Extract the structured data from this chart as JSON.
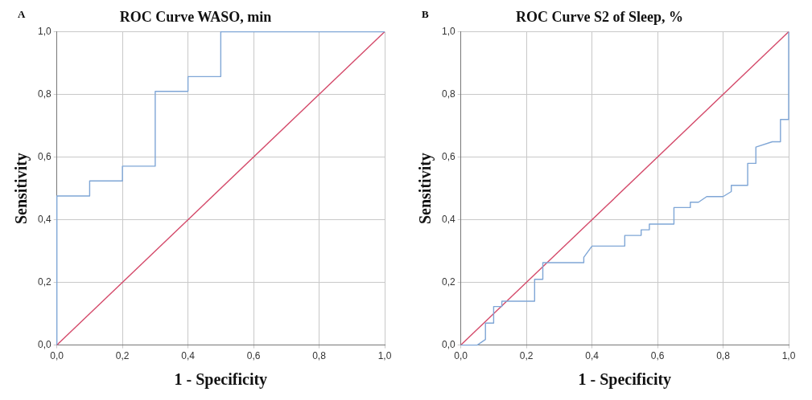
{
  "chart_data": [
    {
      "type": "line",
      "title": "ROC Curve WASO, min",
      "xlabel": "1 - Specificity",
      "ylabel": "Sensitivity",
      "annotations": [
        "A"
      ],
      "xlim": [
        0,
        1
      ],
      "ylim": [
        0,
        1
      ],
      "xticks": [
        {
          "value": 0,
          "label": "0,0"
        },
        {
          "value": 0.2,
          "label": "0,2"
        },
        {
          "value": 0.4,
          "label": "0,4"
        },
        {
          "value": 0.6,
          "label": "0,6"
        },
        {
          "value": 0.8,
          "label": "0,8"
        },
        {
          "value": 1,
          "label": "1,0"
        }
      ],
      "yticks": [
        {
          "value": 0,
          "label": "0,0"
        },
        {
          "value": 0.2,
          "label": "0,2"
        },
        {
          "value": 0.4,
          "label": "0,4"
        },
        {
          "value": 0.6,
          "label": "0,6"
        },
        {
          "value": 0.8,
          "label": "0,8"
        },
        {
          "value": 1,
          "label": "1,0"
        }
      ],
      "grid": true,
      "series": [
        {
          "color": "#7fa6d6",
          "x": [
            0,
            0,
            0.1,
            0.1,
            0.2,
            0.2,
            0.3,
            0.3,
            0.4,
            0.4,
            0.5,
            0.5,
            1
          ],
          "values": [
            0,
            0.476,
            0.476,
            0.524,
            0.524,
            0.571,
            0.571,
            0.81,
            0.81,
            0.857,
            0.857,
            1,
            1
          ]
        },
        {
          "color": "#d44a6a",
          "x": [
            0,
            1
          ],
          "values": [
            0,
            1
          ]
        }
      ]
    },
    {
      "type": "line",
      "title": "ROC Curve S2 of Sleep, %",
      "xlabel": "1 - Specificity",
      "ylabel": "Sensitivity",
      "annotations": [
        "B"
      ],
      "xlim": [
        0,
        1
      ],
      "ylim": [
        0,
        1
      ],
      "xticks": [
        {
          "value": 0,
          "label": "0,0"
        },
        {
          "value": 0.2,
          "label": "0,2"
        },
        {
          "value": 0.4,
          "label": "0,4"
        },
        {
          "value": 0.6,
          "label": "0,6"
        },
        {
          "value": 0.8,
          "label": "0,8"
        },
        {
          "value": 1,
          "label": "1,0"
        }
      ],
      "yticks": [
        {
          "value": 0,
          "label": "0,0"
        },
        {
          "value": 0.2,
          "label": "0,2"
        },
        {
          "value": 0.4,
          "label": "0,4"
        },
        {
          "value": 0.6,
          "label": "0,6"
        },
        {
          "value": 0.8,
          "label": "0,8"
        },
        {
          "value": 1,
          "label": "1,0"
        }
      ],
      "grid": true,
      "series": [
        {
          "color": "#7fa6d6",
          "x": [
            0,
            0.05,
            0.075,
            0.075,
            0.1,
            0.1,
            0.125,
            0.125,
            0.225,
            0.225,
            0.25,
            0.25,
            0.375,
            0.375,
            0.4,
            0.5,
            0.5,
            0.55,
            0.55,
            0.575,
            0.575,
            0.65,
            0.65,
            0.7,
            0.7,
            0.725,
            0.75,
            0.8,
            0.825,
            0.825,
            0.875,
            0.875,
            0.9,
            0.9,
            0.95,
            0.975,
            0.975,
            1,
            1
          ],
          "values": [
            0,
            0,
            0.018,
            0.07,
            0.07,
            0.123,
            0.123,
            0.14,
            0.14,
            0.21,
            0.21,
            0.263,
            0.263,
            0.28,
            0.316,
            0.316,
            0.35,
            0.35,
            0.368,
            0.368,
            0.386,
            0.386,
            0.439,
            0.439,
            0.456,
            0.456,
            0.474,
            0.474,
            0.49,
            0.51,
            0.51,
            0.58,
            0.58,
            0.632,
            0.649,
            0.649,
            0.72,
            0.72,
            1
          ]
        },
        {
          "color": "#d44a6a",
          "x": [
            0,
            1
          ],
          "values": [
            0,
            1
          ]
        }
      ]
    }
  ]
}
